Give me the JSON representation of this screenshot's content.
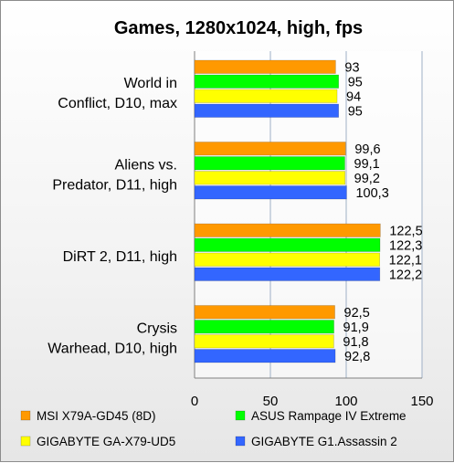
{
  "chart_data": {
    "type": "bar",
    "orientation": "horizontal",
    "title": "Games, 1280x1024, high, fps",
    "categories": [
      [
        "World in",
        "Conflict, D10, max"
      ],
      [
        "Aliens vs.",
        "Predator, D11, high"
      ],
      [
        "DiRT 2, D11, high"
      ],
      [
        "Crysis",
        "Warhead, D10, high"
      ]
    ],
    "series": [
      {
        "name": "MSI X79A-GD45 (8D)",
        "color": "#ff9900",
        "values": [
          93,
          99.6,
          122.5,
          92.5
        ],
        "labels": [
          "93",
          "99,6",
          "122,5",
          "92,5"
        ]
      },
      {
        "name": "ASUS Rampage IV Extreme",
        "color": "#00ff00",
        "values": [
          95,
          99.1,
          122.3,
          91.9
        ],
        "labels": [
          "95",
          "99,1",
          "122,3",
          "91,9"
        ]
      },
      {
        "name": "GIGABYTE GA-X79-UD5",
        "color": "#ffff00",
        "values": [
          94,
          99.2,
          122.1,
          91.8
        ],
        "labels": [
          "94",
          "99,2",
          "122,1",
          "91,8"
        ]
      },
      {
        "name": "GIGABYTE G1.Assassin 2",
        "color": "#3366ff",
        "values": [
          95,
          100.3,
          122.2,
          92.8
        ],
        "labels": [
          "95",
          "100,3",
          "122,2",
          "92,8"
        ]
      }
    ],
    "xlim": [
      0,
      150
    ],
    "xticks": [
      "0",
      "50",
      "100",
      "150"
    ],
    "grid": true,
    "legend": "bottom"
  }
}
